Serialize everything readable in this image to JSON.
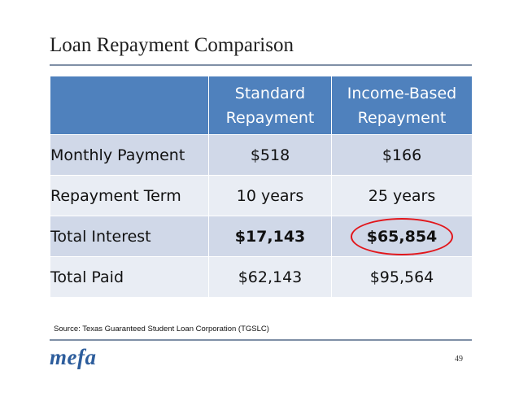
{
  "slide": {
    "title": "Loan Repayment Comparison",
    "source": "Source: Texas Guaranteed Student Loan Corporation (TGSLC)",
    "logo": "mefa",
    "page_number": "49"
  },
  "table": {
    "headers": [
      {
        "line1": "Standard",
        "line2": "Repayment"
      },
      {
        "line1": "Income-Based",
        "line2": "Repayment"
      }
    ],
    "rows": [
      {
        "label": "Monthly Payment",
        "standard": "$518",
        "income_based": "$166"
      },
      {
        "label": "Repayment Term",
        "standard": "10 years",
        "income_based": "25 years"
      },
      {
        "label": "Total Interest",
        "standard": "$17,143",
        "income_based": "$65,854"
      },
      {
        "label": "Total Paid",
        "standard": "$62,143",
        "income_based": "$95,564"
      }
    ]
  },
  "colors": {
    "header_fill": "#4f81bd",
    "row_fill_dark": "#d0d8e8",
    "row_fill_light": "#e9edf4",
    "highlight_circle": "#e2161b",
    "logo": "#2d5d9c"
  }
}
